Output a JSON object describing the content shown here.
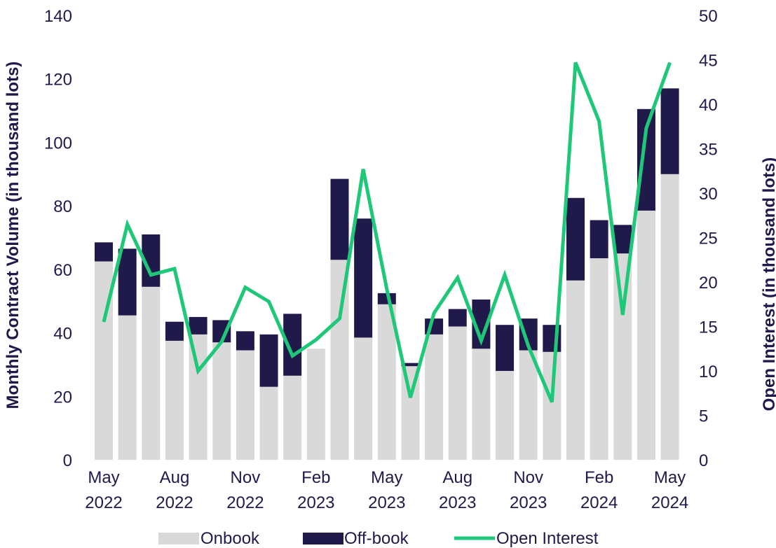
{
  "chart_data": {
    "type": "bar",
    "stacked": true,
    "ylabel": "Monthly Contract Volume (in thousand lots)",
    "y2label": "Open Interest (in thousand lots)",
    "ylim": [
      0,
      140
    ],
    "y2lim": [
      0,
      50
    ],
    "yticks": [
      0,
      20,
      40,
      60,
      80,
      100,
      120,
      140
    ],
    "y2ticks": [
      0,
      5,
      10,
      15,
      20,
      25,
      30,
      35,
      40,
      45,
      50
    ],
    "categories": [
      "May 2022",
      "Jun 2022",
      "Jul 2022",
      "Aug 2022",
      "Sep 2022",
      "Oct 2022",
      "Nov 2022",
      "Dec 2022",
      "Jan 2023",
      "Feb 2023",
      "Mar 2023",
      "Apr 2023",
      "May 2023",
      "Jun 2023",
      "Jul 2023",
      "Aug 2023",
      "Sep 2023",
      "Oct 2023",
      "Nov 2023",
      "Dec 2023",
      "Jan 2024",
      "Feb 2024",
      "Mar 2024",
      "Apr 2024",
      "May 2024"
    ],
    "x_tick_labels": [
      {
        "index": 0,
        "line1": "May",
        "line2": "2022"
      },
      {
        "index": 3,
        "line1": "Aug",
        "line2": "2022"
      },
      {
        "index": 6,
        "line1": "Nov",
        "line2": "2022"
      },
      {
        "index": 9,
        "line1": "Feb",
        "line2": "2023"
      },
      {
        "index": 12,
        "line1": "May",
        "line2": "2023"
      },
      {
        "index": 15,
        "line1": "Aug",
        "line2": "2023"
      },
      {
        "index": 18,
        "line1": "Nov",
        "line2": "2023"
      },
      {
        "index": 21,
        "line1": "Feb",
        "line2": "2024"
      },
      {
        "index": 24,
        "line1": "May",
        "line2": "2024"
      }
    ],
    "series": [
      {
        "name": "Onbook",
        "color": "#d9d9d9",
        "axis": "left",
        "values": [
          62.5,
          45.5,
          54.5,
          37.5,
          39.5,
          37,
          34.5,
          23,
          26.5,
          35,
          63,
          38.5,
          49,
          29.5,
          39.5,
          42,
          35,
          28,
          34.5,
          34,
          56.5,
          63.5,
          65,
          78.5,
          90
        ]
      },
      {
        "name": "Off-book",
        "color": "#1f1a4a",
        "axis": "left",
        "values": [
          6,
          21,
          16.5,
          6,
          5.5,
          7,
          6,
          16.5,
          19.5,
          0,
          25.5,
          37.5,
          3.5,
          1,
          5,
          5.5,
          15.5,
          14.5,
          10,
          8.5,
          26,
          12,
          9,
          32,
          27
        ]
      },
      {
        "name": "Open Interest",
        "color": "#1ec878",
        "axis": "right",
        "type": "line",
        "values": [
          15.5,
          26.5,
          20.8,
          21.5,
          10,
          13.3,
          19.4,
          17.8,
          11.7,
          13.5,
          15.9,
          32.7,
          19.2,
          7,
          16.5,
          20.5,
          13.4,
          20.8,
          12.8,
          6.5,
          44.7,
          38.1,
          16.3,
          37.3,
          44.7
        ]
      }
    ],
    "grid": false,
    "legend": "bottom"
  }
}
